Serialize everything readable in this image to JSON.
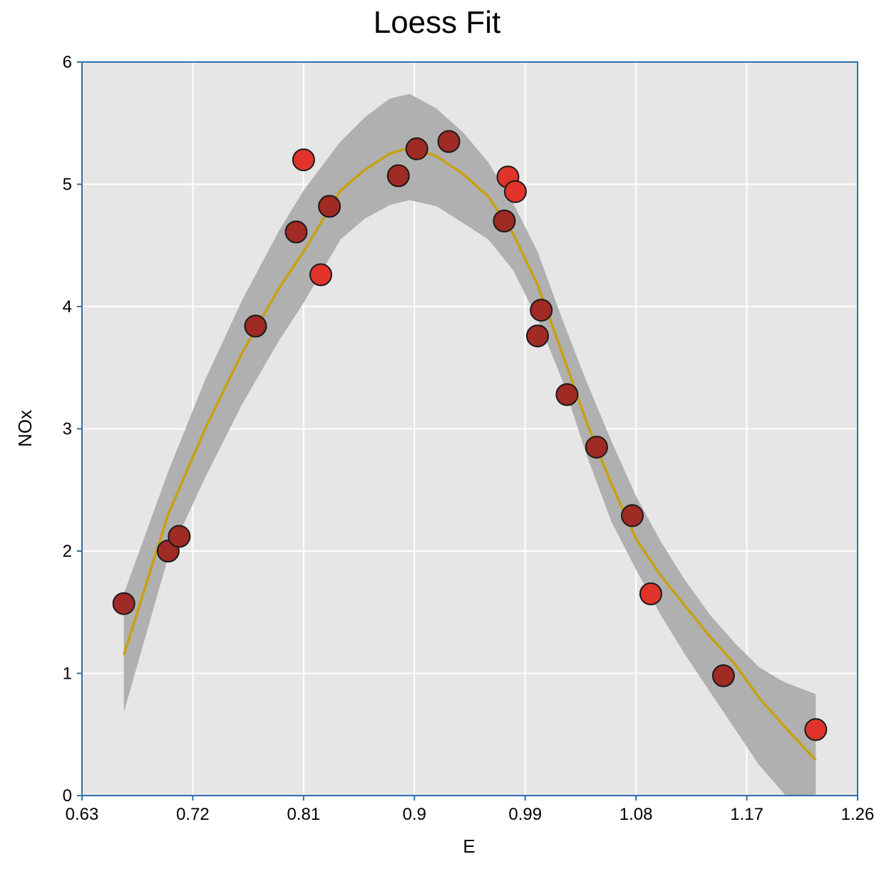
{
  "chart_data": {
    "type": "scatter",
    "title": "Loess Fit",
    "xlabel": "E",
    "ylabel": "NOx",
    "xlim": [
      0.63,
      1.26
    ],
    "ylim": [
      0,
      6
    ],
    "x_ticks": [
      "0.63",
      "0.72",
      "0.81",
      "0.9",
      "0.99",
      "1.08",
      "1.17",
      "1.26"
    ],
    "y_ticks": [
      "0",
      "1",
      "2",
      "3",
      "4",
      "5",
      "6"
    ],
    "grid": true,
    "legend": "none",
    "colors": {
      "plot_background": "#e6e6e6",
      "grid": "#ffffff",
      "axis": "#2e6fad",
      "confidence_band": "#b0b0b0",
      "fit_line": "#c8a10e",
      "point_fill": "#e0342a",
      "point_shade": "#a02a24",
      "point_stroke": "#1a1a1a"
    },
    "series": [
      {
        "type": "scatter",
        "x": [
          0.664,
          0.7,
          0.709,
          0.771,
          0.804,
          0.81,
          0.824,
          0.831,
          0.887,
          0.902,
          0.928,
          0.973,
          0.976,
          0.982,
          1.0,
          1.003,
          1.024,
          1.048,
          1.077,
          1.092,
          1.151,
          1.226
        ],
        "y": [
          1.57,
          2.0,
          2.12,
          3.84,
          4.61,
          5.2,
          4.26,
          4.82,
          5.07,
          5.29,
          5.35,
          4.7,
          5.06,
          4.94,
          3.76,
          3.97,
          3.28,
          2.85,
          2.29,
          1.65,
          0.98,
          0.54
        ]
      },
      {
        "type": "line",
        "x": [
          0.664,
          0.7,
          0.73,
          0.76,
          0.79,
          0.81,
          0.84,
          0.86,
          0.88,
          0.896,
          0.918,
          0.94,
          0.96,
          0.98,
          1.0,
          1.02,
          1.04,
          1.06,
          1.08,
          1.1,
          1.12,
          1.14,
          1.16,
          1.18,
          1.2,
          1.226
        ],
        "y": [
          1.15,
          2.3,
          3.0,
          3.62,
          4.15,
          4.45,
          4.95,
          5.12,
          5.25,
          5.3,
          5.23,
          5.08,
          4.9,
          4.6,
          4.18,
          3.62,
          3.05,
          2.55,
          2.1,
          1.8,
          1.55,
          1.3,
          1.08,
          0.8,
          0.57,
          0.29
        ]
      },
      {
        "type": "band",
        "x": [
          0.664,
          0.7,
          0.73,
          0.76,
          0.79,
          0.81,
          0.84,
          0.86,
          0.88,
          0.896,
          0.918,
          0.94,
          0.96,
          0.98,
          1.0,
          1.02,
          1.04,
          1.06,
          1.08,
          1.1,
          1.12,
          1.14,
          1.16,
          1.18,
          1.2,
          1.226
        ],
        "upper": [
          1.65,
          2.65,
          3.4,
          4.05,
          4.62,
          4.95,
          5.35,
          5.55,
          5.7,
          5.74,
          5.62,
          5.42,
          5.18,
          4.85,
          4.45,
          3.9,
          3.38,
          2.9,
          2.45,
          2.08,
          1.76,
          1.48,
          1.25,
          1.05,
          0.93,
          0.83
        ],
        "lower": [
          0.68,
          1.95,
          2.6,
          3.2,
          3.72,
          4.03,
          4.55,
          4.72,
          4.83,
          4.87,
          4.82,
          4.68,
          4.55,
          4.3,
          3.9,
          3.4,
          2.78,
          2.24,
          1.85,
          1.48,
          1.15,
          0.85,
          0.55,
          0.25,
          0.02,
          -0.28
        ]
      }
    ]
  }
}
